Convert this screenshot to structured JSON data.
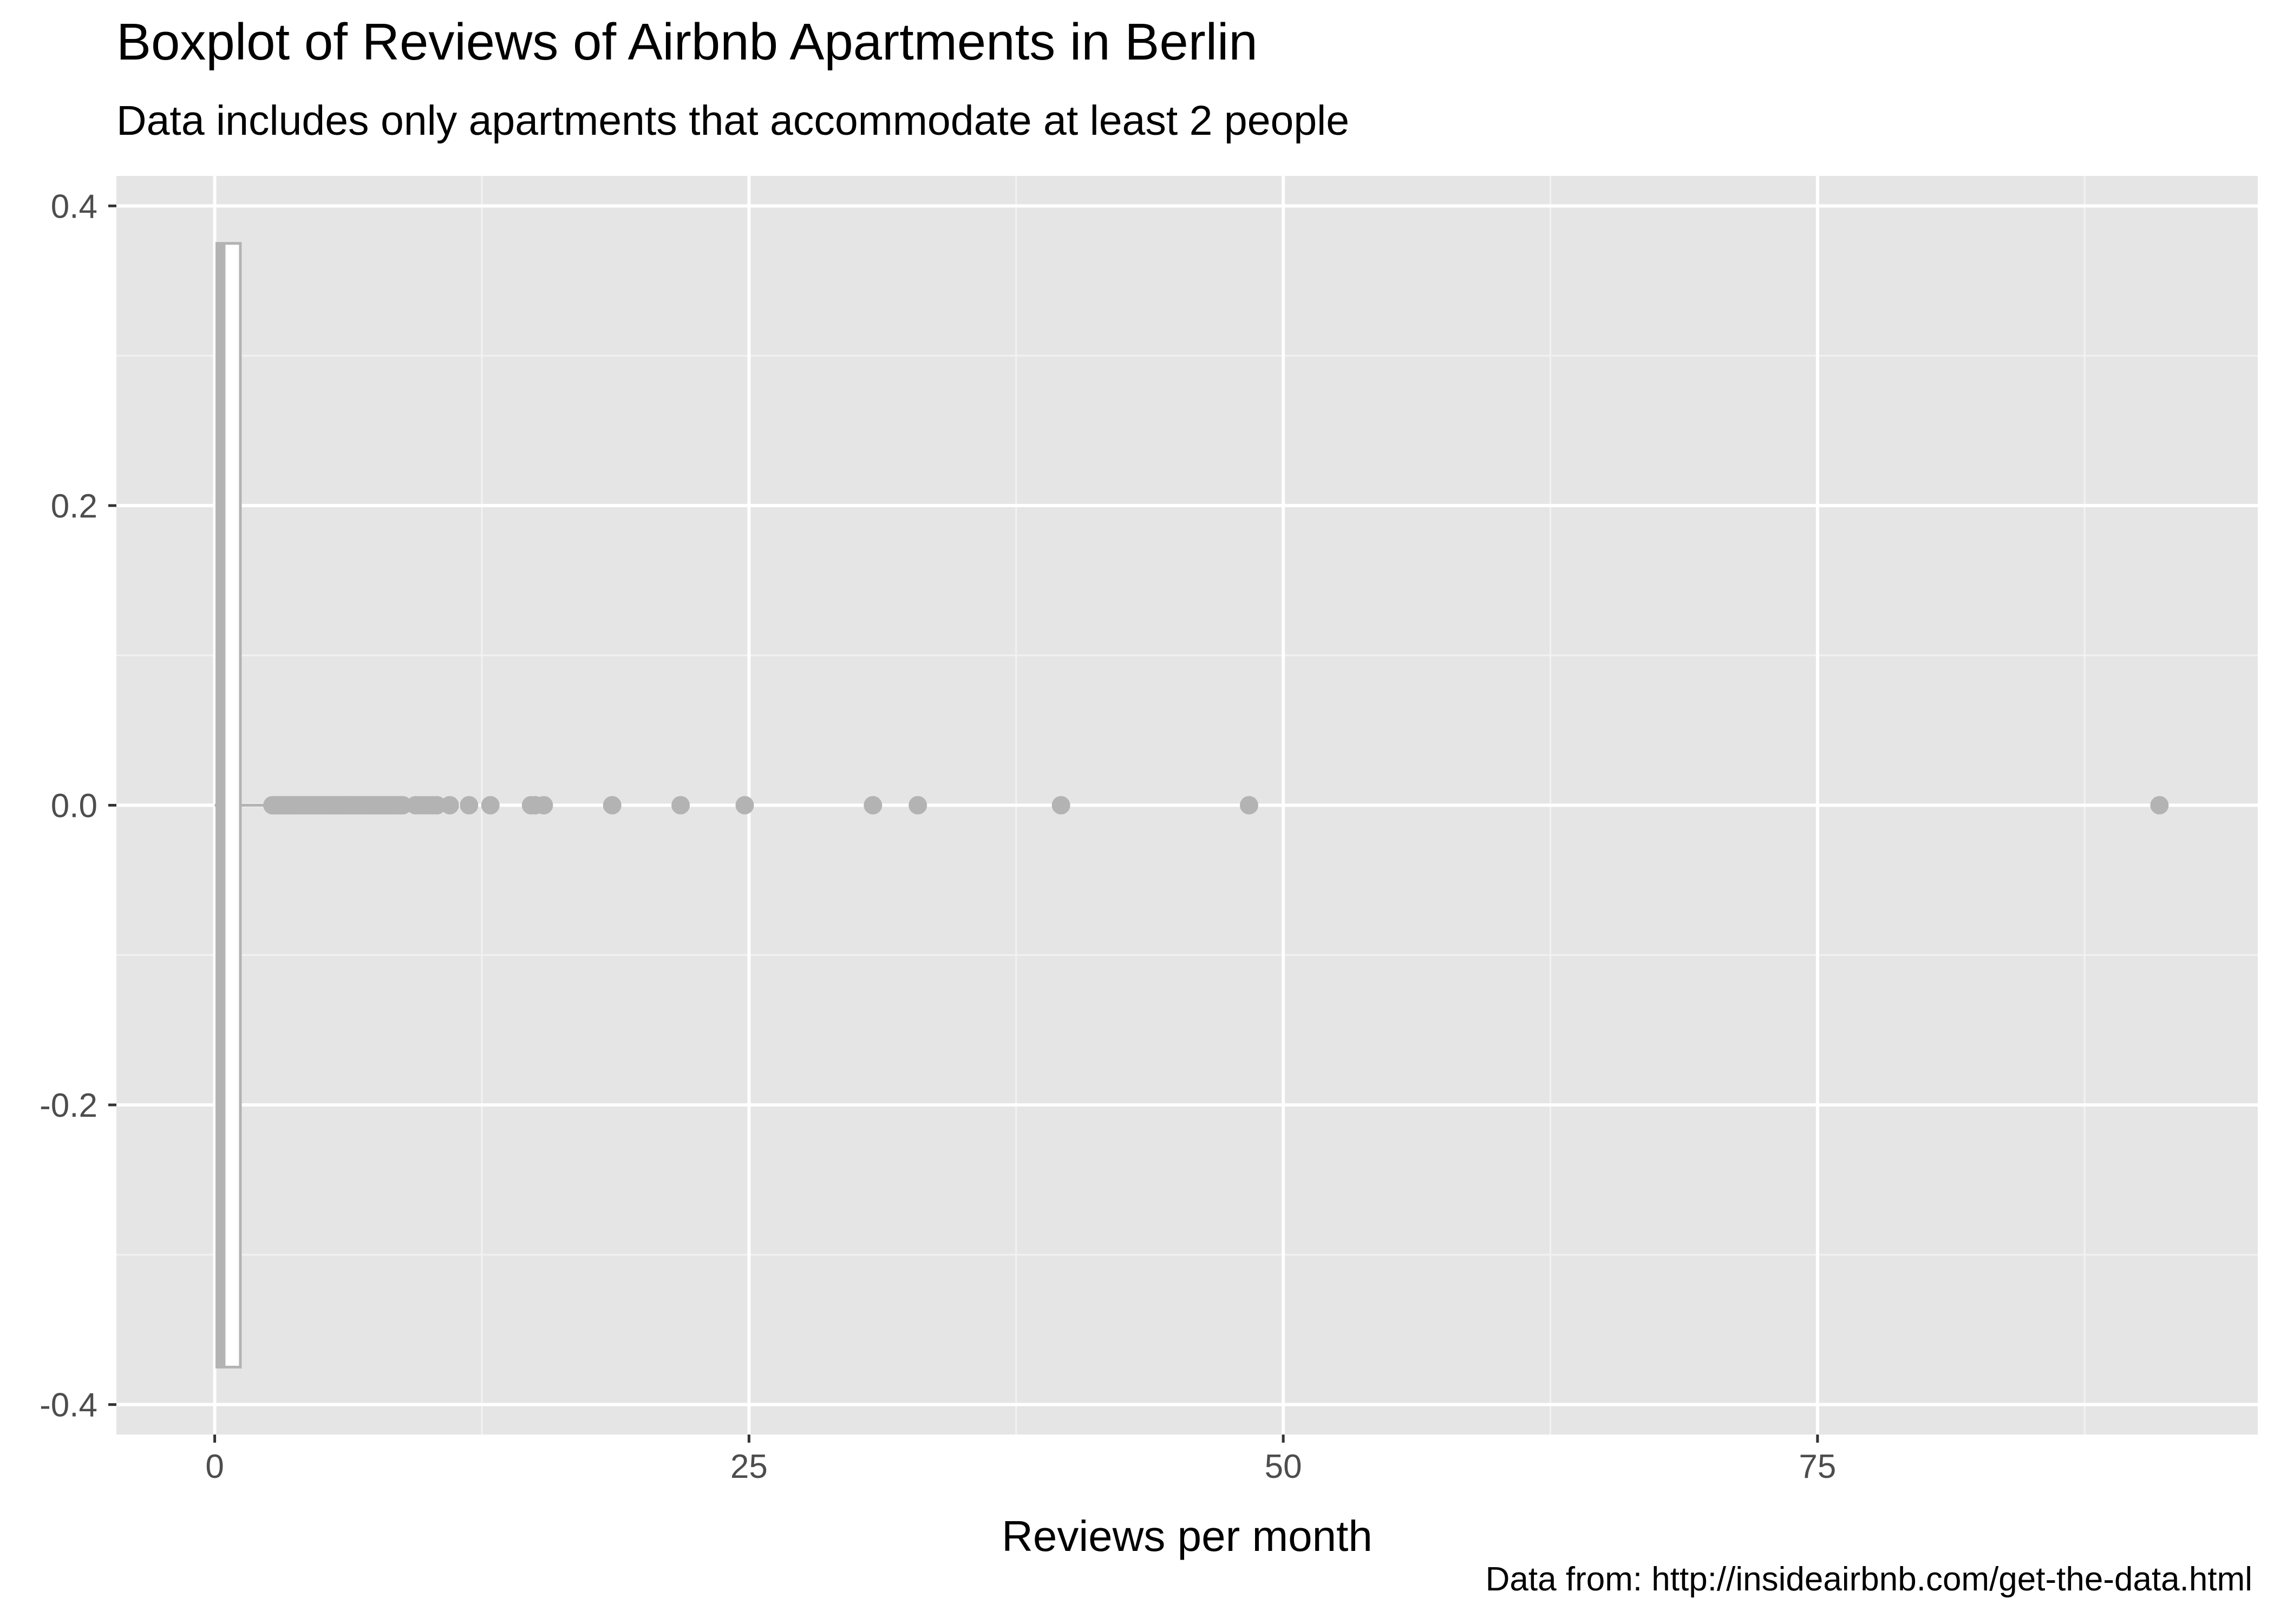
{
  "chart_data": {
    "type": "boxplot",
    "title": "Boxplot of Reviews of Airbnb Apartments in Berlin",
    "subtitle": "Data includes only apartments that accommodate at least 2 people",
    "caption": "Data from: http://insideairbnb.com/get-the-data.html",
    "xlabel": "Reviews per month",
    "ylabel": "",
    "xlim": [
      -4.6,
      95.6
    ],
    "ylim": [
      -0.42,
      0.42
    ],
    "x_ticks": [
      {
        "value": 0,
        "label": "0"
      },
      {
        "value": 25,
        "label": "25"
      },
      {
        "value": 50,
        "label": "50"
      },
      {
        "value": 75,
        "label": "75"
      }
    ],
    "y_ticks": [
      {
        "value": 0.4,
        "label": "0.4"
      },
      {
        "value": 0.2,
        "label": "0.2"
      },
      {
        "value": 0.0,
        "label": "0.0"
      },
      {
        "value": -0.2,
        "label": "-0.2"
      },
      {
        "value": -0.4,
        "label": "-0.4"
      }
    ],
    "box": {
      "orientation": "horizontal",
      "y_center": 0,
      "half_width": 0.375,
      "min": 0.0,
      "q1": 0.1,
      "median": 0.3,
      "q3": 1.2,
      "whisker_low": 0.0,
      "whisker_high": 2.6
    },
    "outliers": [
      2.7,
      2.8,
      2.9,
      3.0,
      3.1,
      3.2,
      3.3,
      3.4,
      3.5,
      3.6,
      3.7,
      3.8,
      3.9,
      4.0,
      4.1,
      4.2,
      4.3,
      4.4,
      4.5,
      4.6,
      4.7,
      4.8,
      4.9,
      5.0,
      5.1,
      5.2,
      5.3,
      5.4,
      5.5,
      5.6,
      5.7,
      5.8,
      5.9,
      6.0,
      6.1,
      6.2,
      6.3,
      6.4,
      6.5,
      6.6,
      6.7,
      6.8,
      6.9,
      7.0,
      7.1,
      7.2,
      7.3,
      7.4,
      7.5,
      7.6,
      7.7,
      7.8,
      7.9,
      8.0,
      8.1,
      8.2,
      8.3,
      8.4,
      8.5,
      8.6,
      8.7,
      8.8,
      9.4,
      9.6,
      9.8,
      10.0,
      10.2,
      10.4,
      11.0,
      11.9,
      12.9,
      14.8,
      15.0,
      15.4,
      18.6,
      21.8,
      24.8,
      30.8,
      32.9,
      39.6,
      48.4,
      91.0
    ],
    "colors": {
      "panel_background": "#e5e5e5",
      "grid_major": "#ffffff",
      "grid_minor": "#f2f2f2",
      "box_line": "#b3b3b3",
      "outlier_fill": "#b3b3b3",
      "tick_text": "#4d4d4d"
    }
  }
}
